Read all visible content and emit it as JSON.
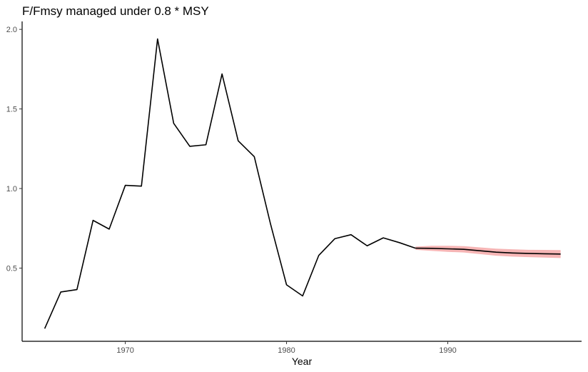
{
  "chart_data": {
    "type": "line",
    "title": "F/Fmsy managed under 0.8 * MSY",
    "xlabel": "Year",
    "ylabel": "",
    "xlim": [
      1963.6,
      1998.3
    ],
    "ylim": [
      0.04,
      2.05
    ],
    "x_ticks": [
      1970,
      1980,
      1990
    ],
    "x_tick_labels": [
      "1970",
      "1980",
      "1990"
    ],
    "y_ticks": [
      0.5,
      1.0,
      1.5,
      2.0
    ],
    "y_tick_labels": [
      "0.5",
      "1.0",
      "1.5",
      "2.0"
    ],
    "grid": false,
    "series": [
      {
        "color": "#000000",
        "x": [
          1965,
          1966,
          1967,
          1968,
          1969,
          1970,
          1971,
          1972,
          1973,
          1974,
          1975,
          1976,
          1977,
          1978,
          1979,
          1980,
          1981,
          1982,
          1983,
          1984,
          1985,
          1986,
          1987,
          1988
        ],
        "y": [
          0.12,
          0.35,
          0.365,
          0.8,
          0.745,
          1.02,
          1.015,
          1.94,
          1.41,
          1.265,
          1.275,
          1.72,
          1.3,
          1.2,
          0.78,
          0.395,
          0.325,
          0.58,
          0.685,
          0.71,
          0.64,
          0.69,
          0.66,
          0.625
        ]
      },
      {
        "color": "#000000",
        "band_color": "#f4a3a3",
        "x": [
          1988,
          1989,
          1990,
          1991,
          1992,
          1993,
          1994,
          1995,
          1996,
          1997
        ],
        "y": [
          0.625,
          0.624,
          0.621,
          0.618,
          0.609,
          0.6,
          0.595,
          0.592,
          0.59,
          0.588
        ],
        "lower": [
          0.615,
          0.608,
          0.602,
          0.598,
          0.588,
          0.578,
          0.572,
          0.569,
          0.566,
          0.563
        ],
        "upper": [
          0.635,
          0.64,
          0.64,
          0.638,
          0.63,
          0.622,
          0.618,
          0.615,
          0.614,
          0.613
        ]
      }
    ]
  }
}
